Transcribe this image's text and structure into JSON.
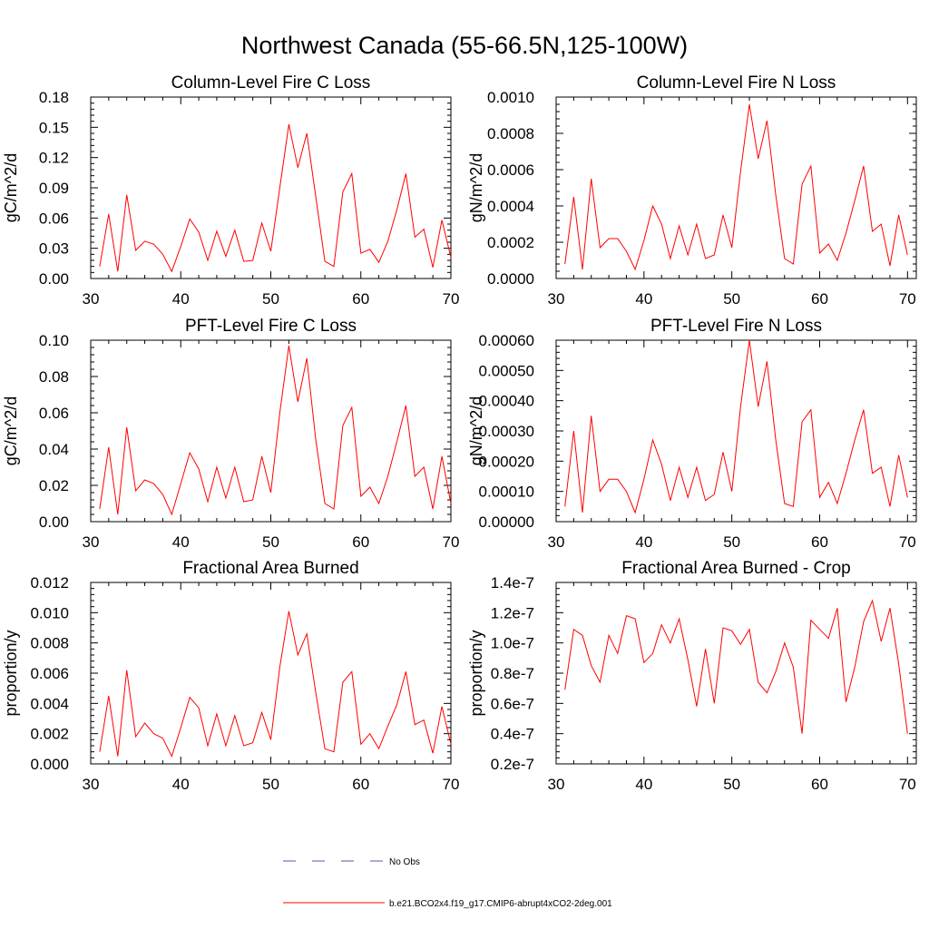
{
  "figure": {
    "title": "Northwest Canada (55-66.5N,125-100W)"
  },
  "legend": {
    "placement": "bottom-center",
    "items": [
      {
        "label": "No Obs",
        "color": "#5555aa",
        "style": "dashed"
      },
      {
        "label": "b.e21.BCO2x4.f19_g17.CMIP6-abrupt4xCO2-2deg.001",
        "color": "#ff0000",
        "style": "solid"
      }
    ]
  },
  "chart_data": [
    {
      "type": "line",
      "title": "Column-Level Fire C Loss",
      "ylabel": "gC/m^2/d",
      "xlim": [
        30,
        70
      ],
      "ylim": [
        0,
        0.18
      ],
      "xticks": [
        30,
        40,
        50,
        60,
        70
      ],
      "xtick_labels": [
        "30",
        "40",
        "50",
        "60",
        "70"
      ],
      "yticks": [
        0,
        0.03,
        0.06,
        0.09,
        0.12,
        0.15,
        0.18
      ],
      "ytick_labels": [
        "0.00",
        "0.03",
        "0.06",
        "0.09",
        "0.12",
        "0.15",
        "0.18"
      ],
      "series": [
        {
          "color": "#ff0000",
          "x": [
            31,
            32,
            33,
            34,
            35,
            36,
            37,
            38,
            39,
            40,
            41,
            42,
            43,
            44,
            45,
            46,
            47,
            48,
            49,
            50,
            51,
            52,
            53,
            54,
            55,
            56,
            57,
            58,
            59,
            60,
            61,
            62,
            63,
            64,
            65,
            66,
            67,
            68,
            69,
            70
          ],
          "values": [
            0.012,
            0.064,
            0.007,
            0.083,
            0.028,
            0.037,
            0.034,
            0.024,
            0.007,
            0.032,
            0.059,
            0.046,
            0.018,
            0.047,
            0.022,
            0.048,
            0.017,
            0.018,
            0.055,
            0.027,
            0.09,
            0.153,
            0.11,
            0.144,
            0.081,
            0.017,
            0.012,
            0.086,
            0.104,
            0.025,
            0.029,
            0.016,
            0.037,
            0.068,
            0.104,
            0.041,
            0.049,
            0.011,
            0.058,
            0.021
          ]
        }
      ]
    },
    {
      "type": "line",
      "title": "Column-Level Fire N Loss",
      "ylabel": "gN/m^2/d",
      "xlim": [
        30,
        71
      ],
      "ylim": [
        0,
        0.001
      ],
      "xticks": [
        30,
        40,
        50,
        60,
        70
      ],
      "xtick_labels": [
        "30",
        "40",
        "50",
        "60",
        "70"
      ],
      "yticks": [
        0,
        0.0002,
        0.0004,
        0.0006,
        0.0008,
        0.001
      ],
      "ytick_labels": [
        "0.0000",
        "0.0002",
        "0.0004",
        "0.0006",
        "0.0008",
        "0.0010"
      ],
      "series": [
        {
          "color": "#ff0000",
          "x": [
            31,
            32,
            33,
            34,
            35,
            36,
            37,
            38,
            39,
            40,
            41,
            42,
            43,
            44,
            45,
            46,
            47,
            48,
            49,
            50,
            51,
            52,
            53,
            54,
            55,
            56,
            57,
            58,
            59,
            60,
            61,
            62,
            63,
            64,
            65,
            66,
            67,
            68,
            69,
            70
          ],
          "values": [
            8e-05,
            0.00045,
            5e-05,
            0.00055,
            0.00017,
            0.00022,
            0.00022,
            0.00015,
            5e-05,
            0.00021,
            0.0004,
            0.0003,
            0.00011,
            0.00029,
            0.00013,
            0.0003,
            0.00011,
            0.00013,
            0.00035,
            0.00017,
            0.00059,
            0.00096,
            0.00066,
            0.00087,
            0.00046,
            0.00011,
            8e-05,
            0.00052,
            0.00062,
            0.00014,
            0.00019,
            0.0001,
            0.00025,
            0.00043,
            0.00062,
            0.00026,
            0.0003,
            7e-05,
            0.00035,
            0.00013
          ]
        }
      ]
    },
    {
      "type": "line",
      "title": "PFT-Level Fire C Loss",
      "ylabel": "gC/m^2/d",
      "xlim": [
        30,
        70
      ],
      "ylim": [
        0,
        0.1
      ],
      "xticks": [
        30,
        40,
        50,
        60,
        70
      ],
      "xtick_labels": [
        "30",
        "40",
        "50",
        "60",
        "70"
      ],
      "yticks": [
        0,
        0.02,
        0.04,
        0.06,
        0.08,
        0.1
      ],
      "ytick_labels": [
        "0.00",
        "0.02",
        "0.04",
        "0.06",
        "0.08",
        "0.10"
      ],
      "series": [
        {
          "color": "#ff0000",
          "x": [
            31,
            32,
            33,
            34,
            35,
            36,
            37,
            38,
            39,
            40,
            41,
            42,
            43,
            44,
            45,
            46,
            47,
            48,
            49,
            50,
            51,
            52,
            53,
            54,
            55,
            56,
            57,
            58,
            59,
            60,
            61,
            62,
            63,
            64,
            65,
            66,
            67,
            68,
            69,
            70
          ],
          "values": [
            0.007,
            0.041,
            0.004,
            0.052,
            0.017,
            0.023,
            0.021,
            0.015,
            0.004,
            0.021,
            0.038,
            0.029,
            0.011,
            0.03,
            0.013,
            0.03,
            0.011,
            0.012,
            0.036,
            0.016,
            0.06,
            0.097,
            0.066,
            0.09,
            0.045,
            0.01,
            0.007,
            0.053,
            0.063,
            0.014,
            0.019,
            0.01,
            0.025,
            0.044,
            0.064,
            0.025,
            0.03,
            0.007,
            0.036,
            0.01
          ]
        }
      ]
    },
    {
      "type": "line",
      "title": "PFT-Level Fire N Loss",
      "ylabel": "gN/m^2/d",
      "xlim": [
        30,
        71
      ],
      "ylim": [
        0,
        0.0006
      ],
      "xticks": [
        30,
        40,
        50,
        60,
        70
      ],
      "xtick_labels": [
        "30",
        "40",
        "50",
        "60",
        "70"
      ],
      "yticks": [
        0,
        0.0001,
        0.0002,
        0.0003,
        0.0004,
        0.0005,
        0.0006
      ],
      "ytick_labels": [
        "0.00000",
        "0.00010",
        "0.00020",
        "0.00030",
        "0.00040",
        "0.00050",
        "0.00060"
      ],
      "series": [
        {
          "color": "#ff0000",
          "x": [
            31,
            32,
            33,
            34,
            35,
            36,
            37,
            38,
            39,
            40,
            41,
            42,
            43,
            44,
            45,
            46,
            47,
            48,
            49,
            50,
            51,
            52,
            53,
            54,
            55,
            56,
            57,
            58,
            59,
            60,
            61,
            62,
            63,
            64,
            65,
            66,
            67,
            68,
            69,
            70
          ],
          "values": [
            5e-05,
            0.0003,
            3e-05,
            0.00035,
            0.0001,
            0.00014,
            0.00014,
            0.0001,
            3e-05,
            0.00014,
            0.00027,
            0.00019,
            7e-05,
            0.00018,
            8e-05,
            0.00018,
            7e-05,
            9e-05,
            0.00023,
            0.0001,
            0.00038,
            0.0006,
            0.00038,
            0.00053,
            0.00027,
            6e-05,
            5e-05,
            0.00033,
            0.00037,
            8e-05,
            0.00013,
            6e-05,
            0.00016,
            0.00027,
            0.00037,
            0.00016,
            0.00018,
            5e-05,
            0.00022,
            8e-05
          ]
        }
      ]
    },
    {
      "type": "line",
      "title": "Fractional Area Burned",
      "ylabel": "proportion/y",
      "xlim": [
        30,
        70
      ],
      "ylim": [
        0,
        0.012
      ],
      "xticks": [
        30,
        40,
        50,
        60,
        70
      ],
      "xtick_labels": [
        "30",
        "40",
        "50",
        "60",
        "70"
      ],
      "yticks": [
        0,
        0.002,
        0.004,
        0.006,
        0.008,
        0.01,
        0.012
      ],
      "ytick_labels": [
        "0.000",
        "0.002",
        "0.004",
        "0.006",
        "0.008",
        "0.010",
        "0.012"
      ],
      "series": [
        {
          "color": "#ff0000",
          "x": [
            31,
            32,
            33,
            34,
            35,
            36,
            37,
            38,
            39,
            40,
            41,
            42,
            43,
            44,
            45,
            46,
            47,
            48,
            49,
            50,
            51,
            52,
            53,
            54,
            55,
            56,
            57,
            58,
            59,
            60,
            61,
            62,
            63,
            64,
            65,
            66,
            67,
            68,
            69,
            70
          ],
          "values": [
            0.0008,
            0.0045,
            0.0005,
            0.0062,
            0.0018,
            0.0027,
            0.002,
            0.0017,
            0.0005,
            0.0024,
            0.0044,
            0.0037,
            0.0012,
            0.0033,
            0.0012,
            0.0032,
            0.0012,
            0.0014,
            0.0034,
            0.0016,
            0.0064,
            0.0101,
            0.0072,
            0.0086,
            0.0047,
            0.001,
            0.0008,
            0.0054,
            0.0061,
            0.0013,
            0.002,
            0.001,
            0.0025,
            0.0039,
            0.0061,
            0.0026,
            0.0029,
            0.0007,
            0.0038,
            0.0013
          ]
        }
      ]
    },
    {
      "type": "line",
      "title": "Fractional Area Burned - Crop",
      "ylabel": "proportion/y",
      "xlim": [
        30,
        71
      ],
      "ylim": [
        2e-08,
        1.4e-07
      ],
      "xticks": [
        30,
        40,
        50,
        60,
        70
      ],
      "xtick_labels": [
        "30",
        "40",
        "50",
        "60",
        "70"
      ],
      "yticks": [
        2e-08,
        4e-08,
        6e-08,
        8e-08,
        1e-07,
        1.2e-07,
        1.4e-07
      ],
      "ytick_labels": [
        "0.2e-7",
        "0.4e-7",
        "0.6e-7",
        "0.8e-7",
        "1.0e-7",
        "1.2e-7",
        "1.4e-7"
      ],
      "series": [
        {
          "color": "#ff0000",
          "x": [
            31,
            32,
            33,
            34,
            35,
            36,
            37,
            38,
            39,
            40,
            41,
            42,
            43,
            44,
            45,
            46,
            47,
            48,
            49,
            50,
            51,
            52,
            53,
            54,
            55,
            56,
            57,
            58,
            59,
            60,
            61,
            62,
            63,
            64,
            65,
            66,
            67,
            68,
            69,
            70
          ],
          "values": [
            6.9e-08,
            1.09e-07,
            1.05e-07,
            8.5e-08,
            7.4e-08,
            1.05e-07,
            9.3e-08,
            1.18e-07,
            1.16e-07,
            8.7e-08,
            9.3e-08,
            1.12e-07,
            1e-07,
            1.16e-07,
            8.9e-08,
            5.8e-08,
            9.6e-08,
            6e-08,
            1.1e-07,
            1.08e-07,
            9.9e-08,
            1.09e-07,
            7.4e-08,
            6.7e-08,
            8.1e-08,
            1e-07,
            8.4e-08,
            4e-08,
            1.15e-07,
            1.09e-07,
            1.03e-07,
            1.23e-07,
            6.1e-08,
            8.4e-08,
            1.14e-07,
            1.28e-07,
            1.01e-07,
            1.23e-07,
            8.6e-08,
            4e-08
          ]
        }
      ]
    }
  ]
}
